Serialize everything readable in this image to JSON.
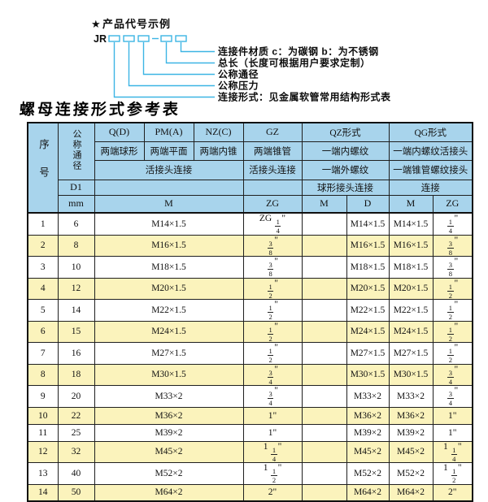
{
  "diagram": {
    "star_icon": "★",
    "heading": "产品代号示例",
    "code_prefix": "JR",
    "line_color": "#3cb5e4",
    "labels": [
      "连接件材质  c：为碳钢  b：为不锈钢",
      "总长（长度可根据用户要求定制）",
      "公称通径",
      "公称压力",
      "连接形式：见金属软管常用结构形式表"
    ]
  },
  "table": {
    "title": "螺母连接形式参考表",
    "colors": {
      "header_bg": "#a8d4ec",
      "row_alt_bg": "#fbf3bc",
      "border": "#1f1f1f"
    },
    "header": {
      "seq": "序号",
      "dn": "公称通径",
      "d1": "D1",
      "mm": "mm",
      "col_q": "Q(D)",
      "col_pm": "PM(A)",
      "col_nz": "NZ(C)",
      "col_gz": "GZ",
      "col_qz": "QZ形式",
      "col_qg": "QG形式",
      "q_desc": "两端球形",
      "pm_desc": "两端平面",
      "nz_desc": "两端内锥",
      "gz_desc": "两端锥管",
      "qz_desc1": "一端内螺纹",
      "qg_desc1": "一端内螺纹活接头",
      "union_conn": "活接头连接",
      "gz_conn": "活接头连接",
      "qz_desc2": "一端外螺纹",
      "qg_desc2": "一端锥管螺纹接头",
      "qz_conn": "球形接头连接",
      "qg_conn": "连接",
      "m_label": "M",
      "zg_label": "ZG",
      "qz_m_label": "M",
      "qz_d_label": "D",
      "qg_m_label": "M",
      "qg_zg_label": "ZG"
    },
    "rows": [
      {
        "seq": "1",
        "dn": "6",
        "m": "M14×1.5",
        "zg": "ZG 1/4\"",
        "qz_m": "",
        "qz_d": "M14×1.5",
        "qg_m": "M14×1.5",
        "qg_zg": "1/4\""
      },
      {
        "seq": "2",
        "dn": "8",
        "m": "M16×1.5",
        "zg": "3/8\"",
        "qz_m": "",
        "qz_d": "M16×1.5",
        "qg_m": "M16×1.5",
        "qg_zg": "3/8\""
      },
      {
        "seq": "3",
        "dn": "10",
        "m": "M18×1.5",
        "zg": "3/8\"",
        "qz_m": "",
        "qz_d": "M18×1.5",
        "qg_m": "M18×1.5",
        "qg_zg": "3/8\""
      },
      {
        "seq": "4",
        "dn": "12",
        "m": "M20×1.5",
        "zg": "1/2\"",
        "qz_m": "",
        "qz_d": "M20×1.5",
        "qg_m": "M20×1.5",
        "qg_zg": "1/2\""
      },
      {
        "seq": "5",
        "dn": "14",
        "m": "M22×1.5",
        "zg": "1/2\"",
        "qz_m": "",
        "qz_d": "M22×1.5",
        "qg_m": "M22×1.5",
        "qg_zg": "1/2\""
      },
      {
        "seq": "6",
        "dn": "15",
        "m": "M24×1.5",
        "zg": "1/2\"",
        "qz_m": "",
        "qz_d": "M24×1.5",
        "qg_m": "M24×1.5",
        "qg_zg": "1/2\""
      },
      {
        "seq": "7",
        "dn": "16",
        "m": "M27×1.5",
        "zg": "1/2\"",
        "qz_m": "",
        "qz_d": "M27×1.5",
        "qg_m": "M27×1.5",
        "qg_zg": "1/2\""
      },
      {
        "seq": "8",
        "dn": "18",
        "m": "M30×1.5",
        "zg": "3/4\"",
        "qz_m": "",
        "qz_d": "M30×1.5",
        "qg_m": "M30×1.5",
        "qg_zg": "3/4\""
      },
      {
        "seq": "9",
        "dn": "20",
        "m": "M33×2",
        "zg": "3/4\"",
        "qz_m": "",
        "qz_d": "M33×2",
        "qg_m": "M33×2",
        "qg_zg": "3/4\""
      },
      {
        "seq": "10",
        "dn": "22",
        "m": "M36×2",
        "zg": "1\"",
        "qz_m": "",
        "qz_d": "M36×2",
        "qg_m": "M36×2",
        "qg_zg": "1\""
      },
      {
        "seq": "11",
        "dn": "25",
        "m": "M39×2",
        "zg": "1\"",
        "qz_m": "",
        "qz_d": "M39×2",
        "qg_m": "M39×2",
        "qg_zg": "1\""
      },
      {
        "seq": "12",
        "dn": "32",
        "m": "M45×2",
        "zg": "1 1/4\"",
        "qz_m": "",
        "qz_d": "M45×2",
        "qg_m": "M45×2",
        "qg_zg": "1 1/4\""
      },
      {
        "seq": "13",
        "dn": "40",
        "m": "M52×2",
        "zg": "1 1/2\"",
        "qz_m": "",
        "qz_d": "M52×2",
        "qg_m": "M52×2",
        "qg_zg": "1 1/2\""
      },
      {
        "seq": "14",
        "dn": "50",
        "m": "M64×2",
        "zg": "2\"",
        "qz_m": "",
        "qz_d": "M64×2",
        "qg_m": "M64×2",
        "qg_zg": "2\""
      }
    ]
  }
}
